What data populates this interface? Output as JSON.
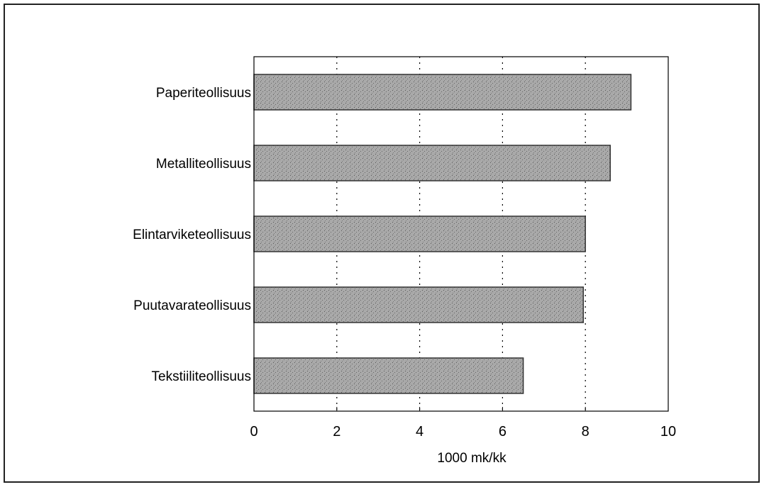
{
  "chart_data": {
    "type": "bar",
    "orientation": "horizontal",
    "categories": [
      "Paperiteollisuus",
      "Metalliteollisuus",
      "Elintarviketeollisuus",
      "Puutavarateollisuus",
      "Tekstiiliteollisuus"
    ],
    "values": [
      9.1,
      8.6,
      8.0,
      7.95,
      6.5
    ],
    "xlabel": "1000 mk/kk",
    "ylabel": "",
    "title": "",
    "xlim": [
      0,
      10
    ],
    "xticks": [
      "0",
      "2",
      "4",
      "6",
      "8",
      "10"
    ],
    "grid": "vertical dotted",
    "bar_color": "#a9a9a9",
    "bar_border_color": "#333333"
  }
}
